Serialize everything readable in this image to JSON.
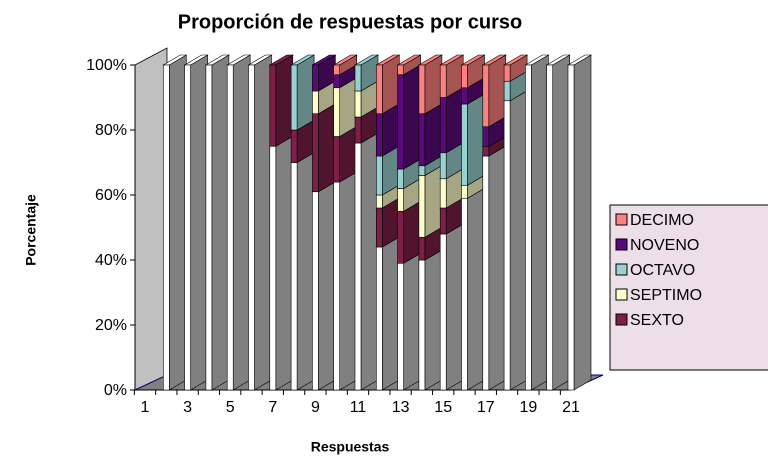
{
  "chart_data": {
    "type": "bar3d_stacked_percent",
    "title": "Proporción de respuestas por curso",
    "x_label": "Respuestas",
    "y_label": "Porcentaje",
    "categories": [
      "1",
      null,
      "3",
      null,
      "5",
      null,
      "7",
      null,
      "9",
      null,
      "11",
      null,
      "13",
      null,
      "15",
      null,
      "17",
      null,
      "19",
      null,
      "21"
    ],
    "series": [
      {
        "name": null,
        "color": "#ffffff",
        "values": [
          0,
          100,
          100,
          100,
          100,
          100,
          75,
          70,
          61,
          64,
          76,
          44,
          39,
          40,
          48,
          59,
          72,
          89,
          100,
          100,
          100
        ]
      },
      {
        "name": "SEXTO",
        "color": "#7d1f48",
        "values": [
          0,
          0,
          0,
          0,
          0,
          0,
          25,
          10,
          24,
          14,
          8,
          12,
          16,
          7,
          8,
          0,
          3,
          0,
          0,
          0,
          0
        ]
      },
      {
        "name": "SEPTIMO",
        "color": "#ffffcc",
        "values": [
          0,
          0,
          0,
          0,
          0,
          0,
          0,
          0,
          7,
          15,
          8,
          4,
          7,
          19,
          9,
          4,
          0,
          0,
          0,
          0,
          0
        ]
      },
      {
        "name": "OCTAVO",
        "color": "#99d0d0",
        "values": [
          0,
          0,
          0,
          0,
          0,
          0,
          0,
          20,
          0,
          0,
          8,
          12,
          6,
          3,
          8,
          25,
          0,
          6,
          0,
          0,
          0
        ]
      },
      {
        "name": "NOVENO",
        "color": "#5a0a78",
        "values": [
          0,
          0,
          0,
          0,
          0,
          0,
          0,
          0,
          8,
          4,
          0,
          13,
          29,
          16,
          17,
          5,
          6,
          0,
          0,
          0,
          0
        ]
      },
      {
        "name": "DECIMO",
        "color": "#ff8080",
        "values": [
          0,
          0,
          0,
          0,
          0,
          0,
          0,
          0,
          0,
          3,
          0,
          15,
          3,
          15,
          10,
          7,
          19,
          5,
          0,
          0,
          0
        ]
      }
    ],
    "ylim": [
      0,
      100
    ],
    "yticks": [
      {
        "value": 0,
        "label": "0%"
      },
      {
        "value": 20,
        "label": "20%"
      },
      {
        "value": 40,
        "label": "40%"
      },
      {
        "value": 60,
        "label": "60%"
      },
      {
        "value": 80,
        "label": "80%"
      },
      {
        "value": 100,
        "label": "100%"
      }
    ],
    "legend": "right"
  }
}
